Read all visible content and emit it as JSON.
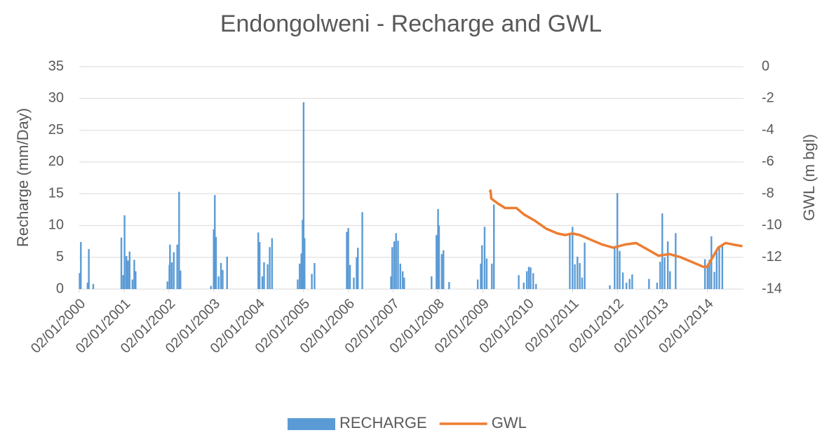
{
  "chart_data": {
    "type": "combo",
    "title": "Endongolweni - Recharge and GWL",
    "y_label": "Recharge (mm/Day)",
    "y2_label": "GWL (m bgl)",
    "xlim": [
      "2000-01-02",
      "2014-10-24"
    ],
    "xticks": [
      {
        "value": "2000-01-02",
        "label": "02/01/2000"
      },
      {
        "value": "2001-01-02",
        "label": "02/01/2001"
      },
      {
        "value": "2002-01-02",
        "label": "02/01/2002"
      },
      {
        "value": "2003-01-02",
        "label": "02/01/2003"
      },
      {
        "value": "2004-01-02",
        "label": "02/01/2004"
      },
      {
        "value": "2005-01-02",
        "label": "02/01/2005"
      },
      {
        "value": "2006-01-02",
        "label": "02/01/2006"
      },
      {
        "value": "2007-01-02",
        "label": "02/01/2007"
      },
      {
        "value": "2008-01-02",
        "label": "02/01/2008"
      },
      {
        "value": "2009-01-02",
        "label": "02/01/2009"
      },
      {
        "value": "2010-01-02",
        "label": "02/01/2010"
      },
      {
        "value": "2011-01-02",
        "label": "02/01/2011"
      },
      {
        "value": "2012-01-02",
        "label": "02/01/2012"
      },
      {
        "value": "2013-01-02",
        "label": "02/01/2013"
      },
      {
        "value": "2014-01-02",
        "label": "02/01/2014"
      }
    ],
    "ylim": [
      0,
      35
    ],
    "yticks": [
      0,
      5,
      10,
      15,
      20,
      25,
      30,
      35
    ],
    "y2lim": [
      -14,
      0
    ],
    "y2ticks": [
      -14,
      -12,
      -10,
      -8,
      -6,
      -4,
      -2,
      0
    ],
    "grid": true,
    "legend": "bottom",
    "series": [
      {
        "name": "RECHARGE",
        "type": "bar",
        "color": "#5b9bd5",
        "x": [
          "2000-01-05",
          "2000-01-15",
          "2000-03-10",
          "2000-03-20",
          "2000-04-25",
          "2000-12-10",
          "2000-12-25",
          "2001-01-05",
          "2001-01-20",
          "2001-02-01",
          "2001-02-15",
          "2001-03-10",
          "2001-03-25",
          "2001-04-05",
          "2001-12-20",
          "2002-01-05",
          "2002-01-10",
          "2002-01-25",
          "2002-02-10",
          "2002-03-10",
          "2002-03-25",
          "2002-04-05",
          "2002-12-10",
          "2003-01-01",
          "2003-01-10",
          "2003-01-20",
          "2003-02-10",
          "2003-03-01",
          "2003-03-15",
          "2003-04-20",
          "2003-12-30",
          "2004-01-10",
          "2004-02-01",
          "2004-02-15",
          "2004-03-15",
          "2004-04-01",
          "2004-04-20",
          "2004-11-15",
          "2004-12-01",
          "2004-12-15",
          "2004-12-25",
          "2005-01-02",
          "2005-01-10",
          "2005-03-10",
          "2005-04-01",
          "2005-12-20",
          "2006-01-01",
          "2006-01-15",
          "2006-02-15",
          "2006-03-10",
          "2006-03-20",
          "2006-04-25",
          "2006-12-15",
          "2006-12-25",
          "2007-01-10",
          "2007-01-25",
          "2007-02-10",
          "2007-03-01",
          "2007-03-20",
          "2007-04-01",
          "2007-11-10",
          "2007-12-20",
          "2008-01-02",
          "2008-01-10",
          "2008-02-01",
          "2008-02-15",
          "2008-04-01",
          "2008-11-20",
          "2008-12-15",
          "2008-12-25",
          "2009-01-15",
          "2009-02-01",
          "2009-03-15",
          "2009-04-01",
          "2009-10-20",
          "2009-11-30",
          "2009-12-25",
          "2010-01-10",
          "2010-01-25",
          "2010-02-15",
          "2010-03-10",
          "2010-12-10",
          "2011-01-01",
          "2011-01-20",
          "2011-02-10",
          "2011-03-01",
          "2011-03-20",
          "2011-04-10",
          "2011-11-01",
          "2011-12-10",
          "2012-01-01",
          "2012-01-20",
          "2012-02-15",
          "2012-03-15",
          "2012-04-10",
          "2012-05-01",
          "2012-09-15",
          "2012-11-20",
          "2012-12-15",
          "2013-01-01",
          "2013-01-20",
          "2013-02-15",
          "2013-03-05",
          "2013-04-20",
          "2013-12-15",
          "2014-01-05",
          "2014-01-20",
          "2014-02-05",
          "2014-03-01",
          "2014-03-20",
          "2014-04-10",
          "2014-05-05"
        ],
        "values": [
          2.5,
          7.4,
          1.0,
          6.3,
          0.8,
          8.1,
          2.2,
          11.6,
          5.2,
          4.5,
          5.9,
          1.5,
          4.6,
          2.8,
          1.2,
          3.8,
          7.0,
          4.2,
          5.8,
          7.0,
          15.3,
          2.9,
          0.5,
          9.4,
          14.8,
          8.2,
          2.0,
          4.1,
          3.0,
          5.1,
          8.9,
          7.4,
          2.0,
          4.2,
          3.9,
          6.6,
          8.0,
          1.5,
          4.0,
          5.6,
          10.9,
          29.4,
          8.0,
          2.4,
          4.1,
          9.0,
          9.6,
          3.8,
          1.8,
          5.0,
          6.5,
          12.1,
          2.0,
          6.6,
          7.5,
          8.8,
          7.6,
          4.0,
          2.8,
          1.8,
          2.0,
          8.5,
          12.6,
          10.0,
          5.5,
          6.1,
          1.1,
          1.5,
          4.0,
          6.9,
          9.8,
          4.8,
          4.0,
          13.3,
          2.2,
          1.0,
          2.8,
          3.5,
          3.4,
          2.5,
          0.8,
          8.8,
          9.8,
          3.9,
          5.1,
          4.1,
          1.8,
          7.3,
          0.6,
          6.8,
          15.1,
          6.0,
          2.6,
          1.0,
          1.6,
          2.3,
          1.6,
          1.0,
          4.3,
          11.9,
          5.0,
          7.5,
          2.8,
          8.8,
          4.7,
          3.5,
          4.6,
          8.3,
          2.7,
          5.9,
          6.8,
          7.1
        ]
      },
      {
        "name": "GWL",
        "type": "line",
        "axis": "y2",
        "color": "#ed7d31",
        "x": [
          "2009-02-25",
          "2009-03-05",
          "2009-03-10",
          "2009-05-01",
          "2009-07-01",
          "2009-10-01",
          "2009-12-01",
          "2010-03-01",
          "2010-06-01",
          "2010-09-01",
          "2010-11-01",
          "2011-01-01",
          "2011-03-01",
          "2011-06-01",
          "2011-09-01",
          "2011-12-01",
          "2012-03-01",
          "2012-06-01",
          "2012-09-01",
          "2012-12-01",
          "2013-03-01",
          "2013-06-01",
          "2013-09-01",
          "2013-12-01",
          "2014-01-01",
          "2014-02-15",
          "2014-04-01",
          "2014-06-01",
          "2014-08-01",
          "2014-10-15"
        ],
        "values": [
          -7.9,
          -7.8,
          -8.3,
          -8.6,
          -8.9,
          -8.9,
          -9.3,
          -9.7,
          -10.2,
          -10.5,
          -10.6,
          -10.5,
          -10.6,
          -10.9,
          -11.2,
          -11.4,
          -11.2,
          -11.1,
          -11.5,
          -11.9,
          -11.8,
          -12.0,
          -12.3,
          -12.6,
          -12.6,
          -12.0,
          -11.4,
          -11.1,
          -11.2,
          -11.3
        ]
      }
    ]
  }
}
